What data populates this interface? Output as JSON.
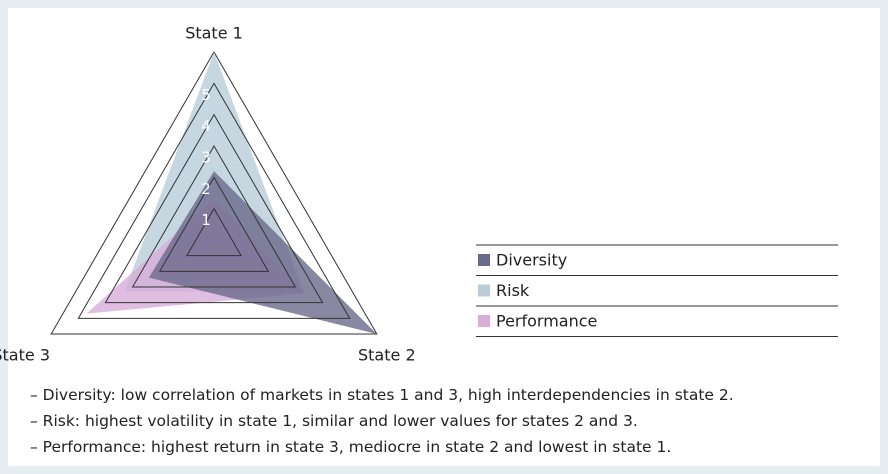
{
  "chart_data": {
    "type": "radar",
    "categories": [
      "State 1",
      "State 2",
      "State 3"
    ],
    "series": [
      {
        "name": "Risk",
        "color": "#b9cdd9",
        "values": [
          6,
          3.3,
          3.3
        ]
      },
      {
        "name": "Performance",
        "color": "#d8aed9",
        "values": [
          1.3,
          3.4,
          4.7
        ]
      },
      {
        "name": "Diversity",
        "color": "#6a6a8c",
        "values": [
          2.2,
          6,
          2.4
        ]
      }
    ],
    "legend_order": [
      "Diversity",
      "Risk",
      "Performance"
    ],
    "ylim": [
      0,
      6
    ],
    "yticks": [
      1,
      2,
      3,
      4,
      5
    ],
    "grid": true
  },
  "notes": [
    "– Diversity: low correlation of markets in states 1 and 3, high interdependencies in state 2.",
    "– Risk: highest volatility in state 1, similar and lower values for states 2 and 3.",
    "– Performance: highest return in state 3, mediocre in state 2 and lowest in state 1."
  ]
}
